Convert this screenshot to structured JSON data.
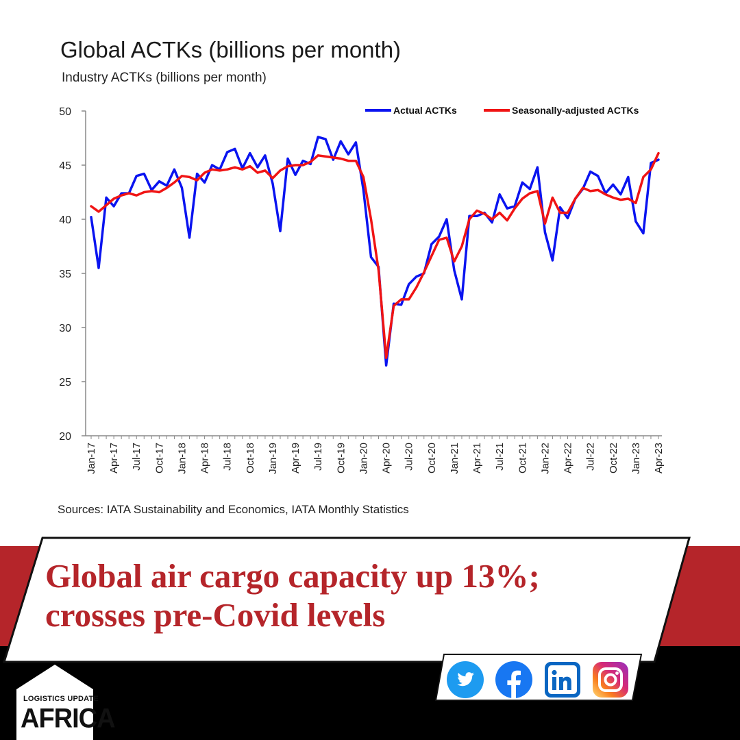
{
  "chart_data": {
    "type": "line",
    "title": "Global ACTKs (billions per month)",
    "subtitle": "Industry ACTKs (billions per month)",
    "source": "Sources: IATA Sustainability and Economics, IATA Monthly Statistics",
    "ylim": [
      20,
      50
    ],
    "y_ticks": [
      "50",
      "45",
      "40",
      "35",
      "30",
      "25",
      "20"
    ],
    "x_tick_labels": [
      "Jan-17",
      "Apr-17",
      "Jul-17",
      "Oct-17",
      "Jan-18",
      "Apr-18",
      "Jul-18",
      "Oct-18",
      "Jan-19",
      "Apr-19",
      "Jul-19",
      "Oct-19",
      "Jan-20",
      "Apr-20",
      "Jul-20",
      "Oct-20",
      "Jan-21",
      "Apr-21",
      "Jul-21",
      "Oct-21",
      "Jan-22",
      "Apr-22",
      "Jul-22",
      "Oct-22",
      "Jan-23",
      "Apr-23"
    ],
    "x_start": "Jan-17",
    "x_end": "Apr-23",
    "legend_position": "top-right",
    "grid": false,
    "series": [
      {
        "name": "Actual ACTKs",
        "color": "#0a14f0",
        "values": [
          40.2,
          35.5,
          42.0,
          41.2,
          42.4,
          42.4,
          44.0,
          44.2,
          42.7,
          43.5,
          43.1,
          44.6,
          42.9,
          38.3,
          44.2,
          43.4,
          45.0,
          44.6,
          46.2,
          46.5,
          44.7,
          46.1,
          44.8,
          45.9,
          43.3,
          38.9,
          45.6,
          44.1,
          45.4,
          45.1,
          47.6,
          47.4,
          45.5,
          47.2,
          46.0,
          47.1,
          42.7,
          36.5,
          35.6,
          26.5,
          32.2,
          32.1,
          34.0,
          34.7,
          35.0,
          37.7,
          38.4,
          40.0,
          35.3,
          32.6,
          40.3,
          40.3,
          40.6,
          39.7,
          42.3,
          41.0,
          41.2,
          43.4,
          42.8,
          44.8,
          38.8,
          36.2,
          41.1,
          40.1,
          41.9,
          42.8,
          44.4,
          44.0,
          42.4,
          43.2,
          42.3,
          43.9,
          39.8,
          38.7,
          45.2,
          45.5
        ]
      },
      {
        "name": "Seasonally-adjusted ACTKs",
        "color": "#f01414",
        "values": [
          41.2,
          40.7,
          41.3,
          41.9,
          42.2,
          42.4,
          42.2,
          42.5,
          42.6,
          42.5,
          42.9,
          43.4,
          44.0,
          43.9,
          43.6,
          44.3,
          44.6,
          44.5,
          44.6,
          44.8,
          44.6,
          44.9,
          44.3,
          44.5,
          43.8,
          44.5,
          44.9,
          45.0,
          45.0,
          45.3,
          45.9,
          45.8,
          45.7,
          45.6,
          45.4,
          45.4,
          43.9,
          40.0,
          35.3,
          27.2,
          32.0,
          32.6,
          32.6,
          33.7,
          35.1,
          36.6,
          38.1,
          38.3,
          36.1,
          37.5,
          40.0,
          40.8,
          40.5,
          40.0,
          40.6,
          39.9,
          41.0,
          41.9,
          42.4,
          42.6,
          39.6,
          42.0,
          40.6,
          40.6,
          41.9,
          42.9,
          42.6,
          42.7,
          42.3,
          42.0,
          41.8,
          41.9,
          41.5,
          43.9,
          44.6,
          46.1
        ]
      }
    ]
  },
  "banner": {
    "headline_line1": "Global air cargo capacity up 13%;",
    "headline_line2": "crosses pre-Covid levels",
    "colors": {
      "accent": "#b5252a",
      "dark": "#000000"
    }
  },
  "social": [
    "twitter-icon",
    "facebook-icon",
    "linkedin-icon",
    "instagram-icon"
  ],
  "logo": {
    "line1": "LOGISTICS UPDATE",
    "line2": "AFRICA"
  }
}
